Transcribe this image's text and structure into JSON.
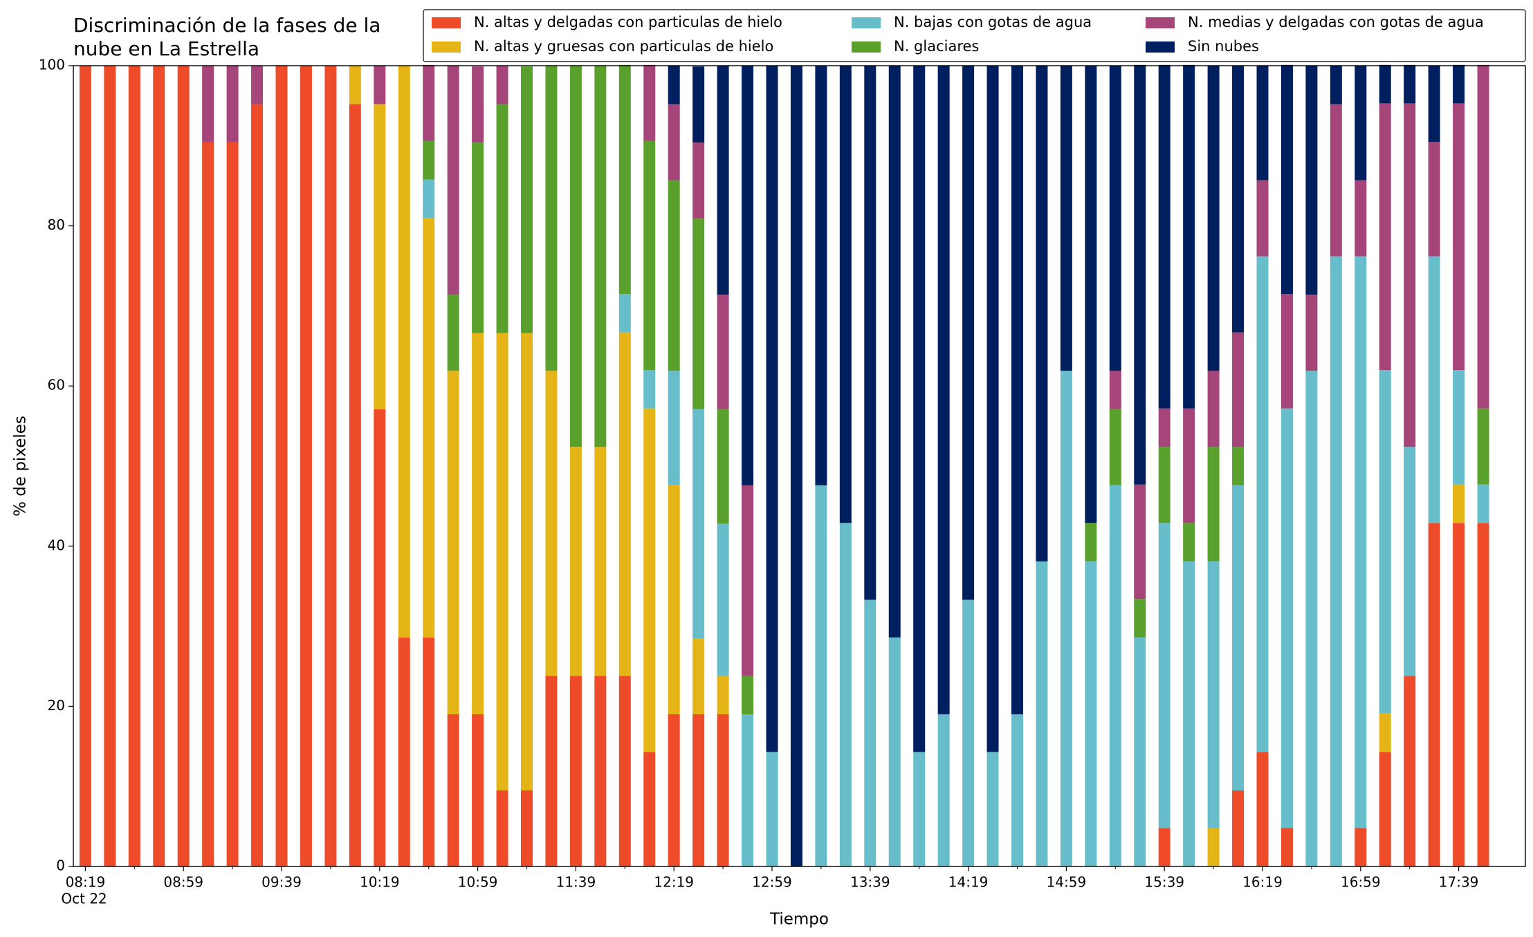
{
  "chart_data": {
    "type": "stacked_bar",
    "title": "Discriminación de la fases de la nube en La Estrella",
    "xlabel": "Tiempo",
    "ylabel": "% de pixeles",
    "date_label": "Oct 22",
    "categories": [
      "08:19",
      null,
      null,
      null,
      "08:59",
      null,
      null,
      null,
      "09:39",
      null,
      null,
      null,
      "10:19",
      null,
      null,
      null,
      "10:59",
      null,
      null,
      null,
      "11:39",
      null,
      null,
      null,
      "12:19",
      null,
      null,
      null,
      "12:59",
      null,
      null,
      null,
      "13:39",
      null,
      null,
      null,
      "14:19",
      null,
      null,
      null,
      "14:59",
      null,
      null,
      null,
      "15:39",
      null,
      null,
      null,
      "16:19",
      null,
      null,
      null,
      "16:59",
      null,
      null,
      null,
      "17:39",
      null
    ],
    "series": [
      {
        "name": "N. altas y delgadas con particulas de hielo",
        "color": "#ee4b2b",
        "values": [
          100,
          100,
          100,
          100,
          100,
          90.5,
          90.5,
          95.2,
          100,
          100,
          100,
          95.2,
          57.1,
          28.6,
          28.6,
          19.0,
          19.0,
          9.5,
          9.5,
          23.8,
          23.8,
          23.8,
          23.8,
          14.3,
          19.0,
          19.0,
          19.0,
          0,
          0,
          0,
          0,
          0,
          0,
          0,
          0,
          0,
          0,
          0,
          0,
          0,
          0,
          0,
          0,
          0,
          4.8,
          0,
          0,
          9.5,
          14.3,
          4.8,
          0,
          0,
          4.8,
          14.3,
          23.8,
          42.9,
          42.9,
          42.9
        ]
      },
      {
        "name": "N. altas y gruesas con particulas de hielo",
        "color": "#e5b517",
        "values": [
          0,
          0,
          0,
          0,
          0,
          0,
          0,
          0,
          0,
          0,
          0,
          4.8,
          38.1,
          71.4,
          52.4,
          42.9,
          47.6,
          57.1,
          57.1,
          38.1,
          28.6,
          28.6,
          42.9,
          42.9,
          28.6,
          9.5,
          4.8,
          0,
          0,
          0,
          0,
          0,
          0,
          0,
          0,
          0,
          0,
          0,
          0,
          0,
          0,
          0,
          0,
          0,
          0,
          0,
          4.8,
          0,
          0,
          0,
          0,
          0,
          0,
          4.8,
          0,
          0,
          4.8,
          0
        ]
      },
      {
        "name": "N. bajas con gotas de agua",
        "color": "#67bdca",
        "values": [
          0,
          0,
          0,
          0,
          0,
          0,
          0,
          0,
          0,
          0,
          0,
          0,
          0,
          0,
          4.8,
          0,
          0,
          0,
          0,
          0,
          0,
          0,
          4.8,
          4.8,
          14.3,
          28.6,
          19.0,
          19.0,
          14.3,
          0,
          47.6,
          42.9,
          33.3,
          28.6,
          14.3,
          19.0,
          33.3,
          14.3,
          19.0,
          38.1,
          61.9,
          38.1,
          47.6,
          28.6,
          38.1,
          38.1,
          33.3,
          38.1,
          61.9,
          52.4,
          61.9,
          76.2,
          71.4,
          42.9,
          28.6,
          33.3,
          14.3,
          4.8
        ]
      },
      {
        "name": "N. glaciares",
        "color": "#5aa02c",
        "values": [
          0,
          0,
          0,
          0,
          0,
          0,
          0,
          0,
          0,
          0,
          0,
          0,
          0,
          0,
          4.8,
          9.5,
          23.8,
          28.6,
          33.3,
          38.1,
          47.6,
          47.6,
          28.6,
          28.6,
          23.8,
          23.8,
          14.3,
          4.8,
          0,
          0,
          0,
          0,
          0,
          0,
          0,
          0,
          0,
          0,
          0,
          0,
          0,
          4.8,
          9.5,
          4.8,
          9.5,
          4.8,
          14.3,
          4.8,
          0,
          0,
          0,
          0,
          0,
          0,
          0,
          0,
          0,
          9.5
        ]
      },
      {
        "name": "N. medias y delgadas con gotas de agua",
        "color": "#a5457a",
        "values": [
          0,
          0,
          0,
          0,
          0,
          9.5,
          9.5,
          4.8,
          0,
          0,
          0,
          0,
          4.8,
          0,
          9.5,
          28.6,
          9.5,
          4.8,
          0,
          0,
          0,
          0,
          0,
          9.5,
          9.5,
          9.5,
          14.3,
          23.8,
          0,
          0,
          0,
          0,
          0,
          0,
          0,
          0,
          0,
          0,
          0,
          0,
          0,
          0,
          4.8,
          14.3,
          4.8,
          14.3,
          9.5,
          14.3,
          9.5,
          14.3,
          9.5,
          19.0,
          9.5,
          33.3,
          42.9,
          14.3,
          33.3,
          42.9
        ]
      },
      {
        "name": "Sin nubes",
        "color": "#001f5f",
        "values": [
          0,
          0,
          0,
          0,
          0,
          0,
          0,
          0,
          0,
          0,
          0,
          0,
          0,
          0,
          0,
          0,
          0,
          0,
          0,
          0,
          0,
          0,
          0,
          0,
          4.8,
          9.5,
          28.6,
          52.4,
          85.7,
          100,
          52.4,
          57.1,
          66.7,
          71.4,
          85.7,
          81.0,
          66.7,
          85.7,
          81.0,
          61.9,
          38.1,
          57.1,
          38.1,
          52.4,
          42.9,
          42.9,
          38.1,
          33.3,
          14.3,
          28.6,
          28.6,
          4.8,
          14.3,
          4.8,
          4.8,
          9.5,
          4.8,
          0
        ]
      }
    ],
    "ylim": [
      0,
      100
    ],
    "yticks": [
      0,
      20,
      40,
      60,
      80,
      100
    ],
    "grid": false,
    "legend": "upper right"
  }
}
